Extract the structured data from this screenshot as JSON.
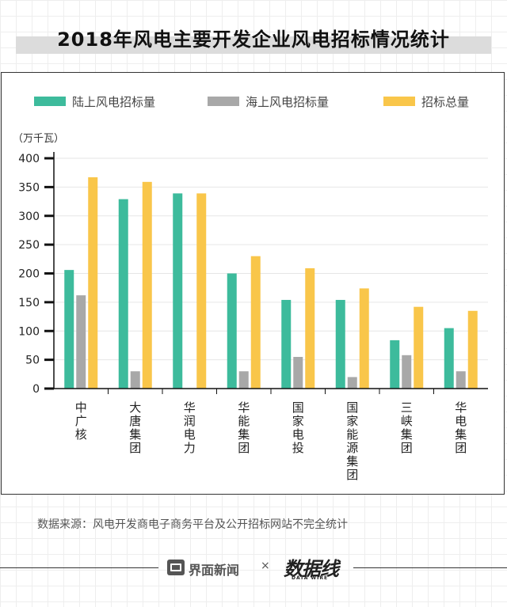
{
  "title": "2018年风电主要开发企业风电招标情况统计",
  "source": "数据来源：风电开发商电子商务平台及公开招标网站不完全统计",
  "footer": {
    "brand_name": "界面新闻",
    "separator": "×",
    "partner_logo": "数据线",
    "partner_sub": "DATA WIRE"
  },
  "chart_data": {
    "type": "bar",
    "unit_label": "（万千瓦）",
    "categories": [
      "中广核",
      "大唐集团",
      "华润电力",
      "华能集团",
      "国家电投",
      "国家能源集团",
      "三峡集团",
      "华电集团"
    ],
    "series": [
      {
        "name": "陆上风电招标量",
        "color": "#3dbb9c",
        "values": [
          206,
          329,
          339,
          200,
          154,
          154,
          84,
          105
        ]
      },
      {
        "name": "海上风电招标量",
        "color": "#a8a8a8",
        "values": [
          162,
          30,
          0,
          30,
          55,
          20,
          58,
          30
        ]
      },
      {
        "name": "招标总量",
        "color": "#f9c64a",
        "values": [
          367,
          359,
          339,
          230,
          209,
          174,
          142,
          135
        ]
      }
    ],
    "yticks": [
      0,
      50,
      100,
      150,
      200,
      250,
      300,
      350,
      400
    ],
    "ylim": [
      0,
      400
    ],
    "grid": true,
    "legend_position": "top"
  }
}
